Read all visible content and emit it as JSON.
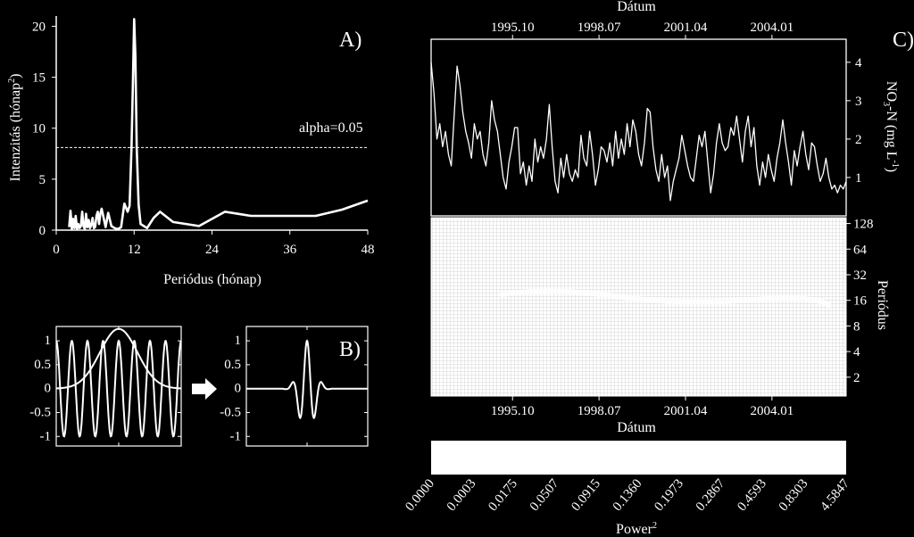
{
  "colors": {
    "background": "#000000",
    "foreground": "#ffffff",
    "wavelet_grid": "#9a9a9a"
  },
  "chart_data": [
    {
      "id": "A",
      "type": "line",
      "panel_label": "A)",
      "xlabel": "Periódus (hónap)",
      "ylabel_main": "Intenzitás (hónap",
      "ylabel_sup": "2",
      "ylabel_close": ")",
      "xlim": [
        0,
        48
      ],
      "ylim": [
        0,
        21
      ],
      "xticks": [
        "0",
        "12",
        "24",
        "36",
        "48"
      ],
      "yticks": [
        "0",
        "5",
        "10",
        "15",
        "20"
      ],
      "threshold": {
        "label": "alpha=0.05",
        "value": 8.1
      },
      "x": [
        2,
        2.2,
        2.4,
        2.6,
        2.8,
        3,
        3.2,
        3.4,
        3.6,
        3.8,
        4,
        4.2,
        4.4,
        4.6,
        4.8,
        5,
        5.2,
        5.4,
        5.6,
        5.8,
        6,
        6.2,
        6.4,
        6.6,
        6.8,
        7,
        7.3,
        7.6,
        8,
        8.5,
        9,
        9.5,
        10,
        10.5,
        11,
        11.3,
        11.6,
        11.8,
        12,
        12.2,
        12.4,
        12.7,
        13,
        14,
        15,
        16,
        18,
        20,
        22,
        24,
        26,
        28,
        30,
        32,
        36,
        40,
        44,
        48
      ],
      "y": [
        0.3,
        1.9,
        0.1,
        1.1,
        0.2,
        1.4,
        0.1,
        0.6,
        0.2,
        0.4,
        1.8,
        0.4,
        0.1,
        1.6,
        0.3,
        1.0,
        0.2,
        0.5,
        1.2,
        0.2,
        0.3,
        1.4,
        1.8,
        0.6,
        1.6,
        2.1,
        1.2,
        0.3,
        1.7,
        0.4,
        0.2,
        0.1,
        0.3,
        2.6,
        1.8,
        2.4,
        8.0,
        14,
        20.7,
        17,
        8,
        2.5,
        0.6,
        0.2,
        1.2,
        1.8,
        0.8,
        0.6,
        0.4,
        1.1,
        1.8,
        1.6,
        1.4,
        1.4,
        1.4,
        1.4,
        2.0,
        2.9
      ]
    },
    {
      "id": "B",
      "type": "line",
      "panel_label": "B)",
      "arrow": "right-arrow",
      "xlim": [
        -1,
        1
      ],
      "ylim": [
        -1.2,
        1.3
      ],
      "yticks": [
        "1",
        "0.5",
        "0",
        "-0.5",
        "-1"
      ],
      "left": {
        "cosine_periods": 8,
        "gaussian_sigma": 0.3,
        "gaussian_peak": 1.25
      },
      "right": {
        "cosine_periods": 8,
        "gaussian_sigma": 0.12
      }
    },
    {
      "id": "C",
      "type": "line",
      "panel_label": "C)",
      "xlabel_top": "Dátum",
      "xticks": [
        "1995.10",
        "1998.07",
        "2001.04",
        "2004.01"
      ],
      "xtick_values": [
        1995.79,
        1998.54,
        2001.29,
        2004.04
      ],
      "xlim": [
        1993.2,
        2006.4
      ],
      "ylabel_parts": [
        "NO",
        "3",
        "-N (mg L",
        "-1",
        ")"
      ],
      "ylim": [
        0,
        4.6
      ],
      "yticks": [
        "1",
        "2",
        "3",
        "4"
      ],
      "y": [
        4.0,
        3.2,
        2.0,
        2.4,
        1.8,
        2.2,
        1.6,
        1.3,
        2.6,
        3.9,
        3.4,
        2.7,
        2.2,
        1.9,
        1.5,
        2.4,
        2.0,
        2.2,
        1.6,
        1.3,
        1.9,
        3.0,
        2.5,
        2.2,
        1.6,
        1.0,
        0.7,
        1.4,
        1.8,
        2.3,
        2.3,
        1.1,
        1.4,
        0.8,
        1.3,
        0.9,
        2.0,
        1.4,
        1.8,
        1.5,
        2.0,
        2.9,
        1.8,
        0.9,
        0.6,
        1.5,
        1.0,
        1.6,
        1.1,
        0.9,
        1.2,
        1.0,
        2.1,
        1.5,
        1.3,
        2.2,
        1.6,
        0.8,
        1.2,
        1.8,
        1.7,
        1.4,
        1.9,
        1.3,
        2.2,
        1.5,
        2.0,
        1.6,
        2.4,
        1.8,
        2.5,
        2.2,
        1.6,
        1.3,
        1.9,
        2.8,
        2.7,
        1.8,
        1.2,
        0.9,
        1.6,
        1.0,
        1.3,
        0.4,
        0.9,
        1.2,
        1.5,
        2.1,
        1.7,
        1.3,
        1.0,
        0.9,
        1.5,
        2.1,
        1.8,
        2.2,
        1.4,
        0.6,
        1.1,
        1.9,
        2.4,
        1.9,
        1.7,
        1.8,
        2.3,
        2.1,
        2.6,
        2.0,
        1.4,
        2.2,
        2.6,
        1.8,
        2.3,
        1.3,
        0.8,
        1.4,
        1.0,
        1.6,
        1.2,
        0.9,
        1.5,
        1.9,
        2.5,
        1.9,
        1.4,
        0.8,
        1.7,
        1.3,
        1.8,
        2.2,
        1.6,
        1.2,
        1.9,
        1.8,
        1.3,
        0.9,
        1.1,
        1.5,
        1.0,
        0.7,
        0.8,
        0.6,
        0.8,
        0.7,
        0.9
      ]
    },
    {
      "id": "C-wavelet",
      "type": "heatmap",
      "xlabel": "Dátum",
      "ylabel": "Periódus",
      "xticks": [
        "1995.10",
        "1998.07",
        "2001.04",
        "2004.01"
      ],
      "yticks": [
        "2",
        "4",
        "8",
        "16",
        "32",
        "64",
        "128"
      ],
      "yscale": "log2"
    },
    {
      "id": "C-colorbar",
      "type": "heatmap",
      "xlabel_main": "Power",
      "xlabel_sup": "2",
      "ticks": [
        "0.0000",
        "0.0003",
        "0.0175",
        "0.0507",
        "0.0915",
        "0.1360",
        "0.1973",
        "0.2867",
        "0.4593",
        "0.8303",
        "4.5847"
      ]
    }
  ]
}
